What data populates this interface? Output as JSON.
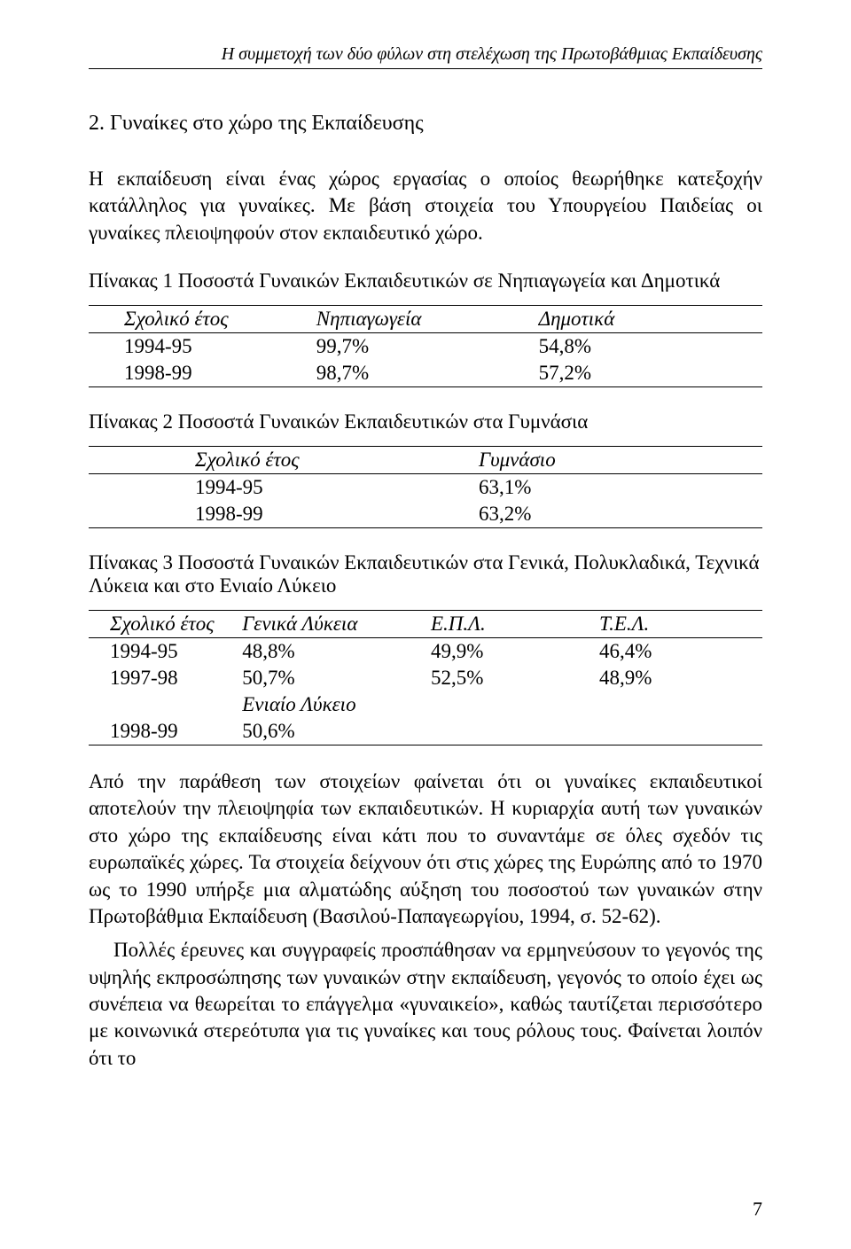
{
  "running_head": "Η συμμετοχή των δύο φύλων στη στελέχωση της Πρωτοβάθμιας Εκπαίδευσης",
  "section_heading": "2. Γυναίκες στο χώρο της Εκπαίδευσης",
  "intro_para": "Η εκπαίδευση είναι ένας χώρος εργασίας ο οποίος θεωρήθηκε κατεξοχήν κατάλληλος για γυναίκες. Με βάση στοιχεία του Υπουργείου Παιδείας οι γυναίκες πλειοψηφούν στον εκπαιδευτικό χώρο.",
  "table1": {
    "caption": "Πίνακας 1 Ποσοστά Γυναικών Εκπαιδευτικών σε Νηπιαγωγεία και Δημοτικά",
    "headers": [
      "Σχολικό έτος",
      "Νηπιαγωγεία",
      "Δημοτικά"
    ],
    "rows": [
      [
        "1994-95",
        "99,7%",
        "54,8%"
      ],
      [
        "1998-99",
        "98,7%",
        "57,2%"
      ]
    ]
  },
  "table2": {
    "caption": "Πίνακας 2 Ποσοστά Γυναικών Εκπαιδευτικών στα Γυμνάσια",
    "headers": [
      "Σχολικό έτος",
      "Γυμνάσιο"
    ],
    "rows": [
      [
        "1994-95",
        "63,1%"
      ],
      [
        "1998-99",
        "63,2%"
      ]
    ]
  },
  "table3": {
    "caption": "Πίνακας 3 Ποσοστά Γυναικών Εκπαιδευτικών στα Γενικά, Πολυκλαδικά, Τεχνικά Λύκεια και στο Ενιαίο Λύκειο",
    "headers": [
      "Σχολικό έτος",
      "Γενικά Λύκεια",
      "Ε.Π.Λ.",
      "Τ.Ε.Λ."
    ],
    "rows": [
      [
        "1994-95",
        "48,8%",
        "49,9%",
        "46,4%"
      ],
      [
        "1997-98",
        "50,7%",
        "52,5%",
        "48,9%"
      ]
    ],
    "subheader": [
      "",
      "Ενιαίο Λύκειο",
      "",
      ""
    ],
    "rows2": [
      [
        "1998-99",
        "50,6%",
        "",
        ""
      ]
    ]
  },
  "para2": "Από την παράθεση των στοιχείων φαίνεται ότι οι γυναίκες εκπαιδευτικοί  αποτελούν την πλειοψηφία των εκπαιδευτικών. Η κυριαρχία αυτή των γυναικών στο χώρο της εκπαίδευσης είναι κάτι που το συναντάμε σε όλες σχεδόν τις ευρωπαϊκές χώρες. Τα στοιχεία δείχνουν ότι στις χώρες της Ευρώπης  από το 1970 ως το 1990 υπήρξε μια αλματώδης αύξηση του ποσοστού των γυναικών στην Πρωτοβάθμια Εκπαίδευση (Βασιλού-Παπαγεωργίου, 1994, σ. 52-62).",
  "para3": "Πολλές έρευνες και συγγραφείς προσπάθησαν να ερμηνεύσουν το γεγονός της υψηλής εκπροσώπησης των γυναικών στην εκπαίδευση, γεγονός το οποίο έχει ως συνέπεια να θεωρείται το επάγγελμα «γυναικείο», καθώς ταυτίζεται περισσότερο με κοινωνικά στερεότυπα για τις γυναίκες και τους ρόλους τους. Φαίνεται λοιπόν ότι το",
  "page_number": "7"
}
